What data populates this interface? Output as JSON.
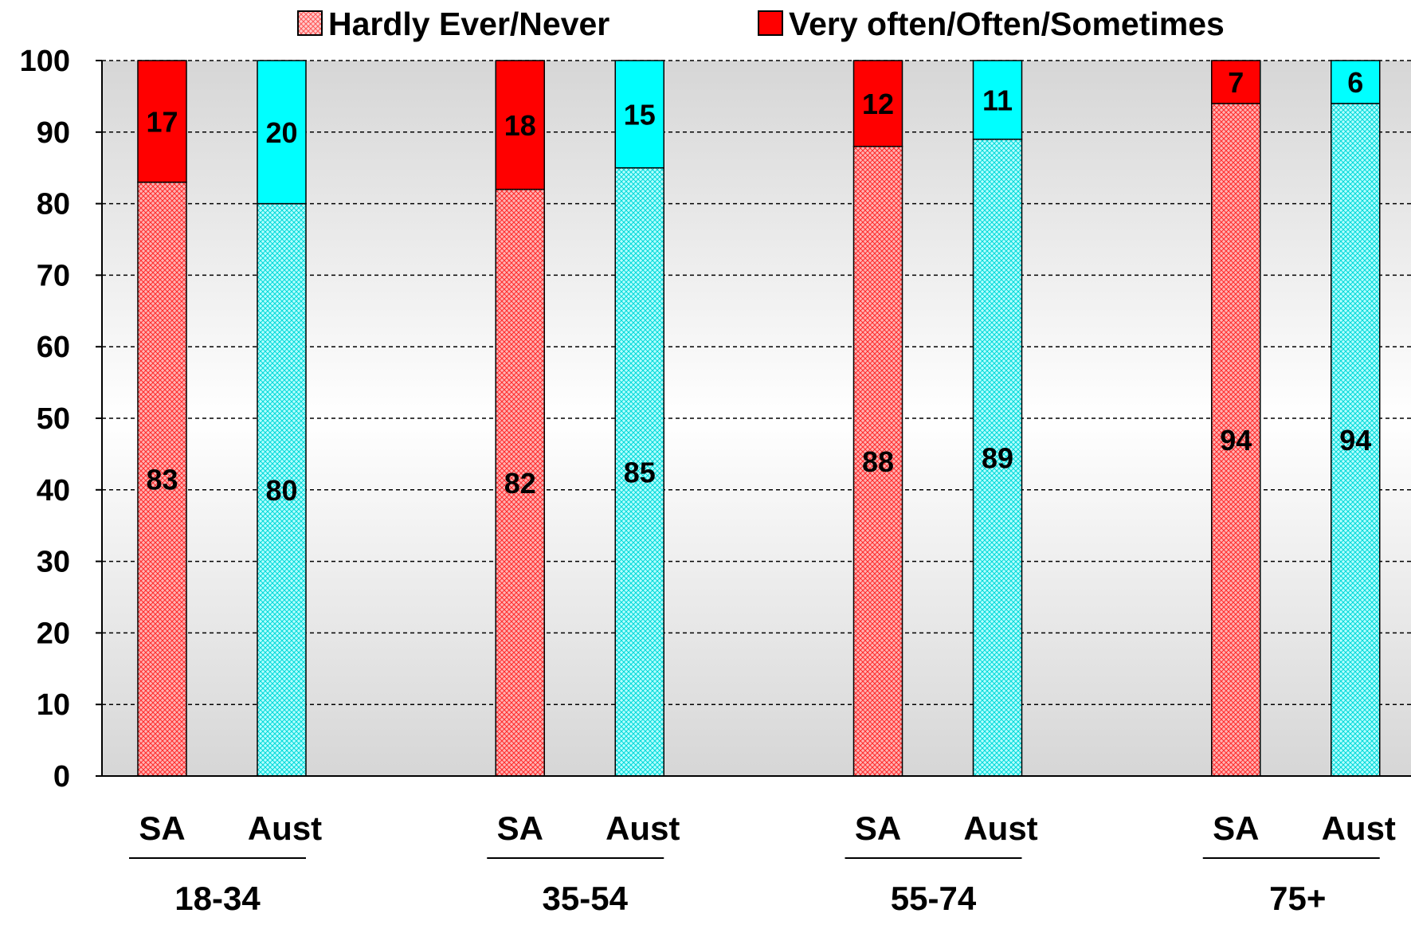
{
  "chart_data": {
    "type": "bar",
    "stacked": true,
    "title": "",
    "xlabel": "",
    "ylabel": "",
    "ylim": [
      0,
      100
    ],
    "yticks": [
      0,
      10,
      20,
      30,
      40,
      50,
      60,
      70,
      80,
      90,
      100
    ],
    "grid": true,
    "legend_position": "top",
    "groups": [
      "18-34",
      "35-54",
      "55-74",
      "75+"
    ],
    "bars": [
      "SA",
      "Aust"
    ],
    "series": [
      {
        "name": "Hardly Ever/Never",
        "pattern": "crosshatch",
        "values": {
          "SA": [
            83,
            82,
            88,
            94
          ],
          "Aust": [
            80,
            85,
            89,
            94
          ]
        }
      },
      {
        "name": "Very often/Often/Sometimes",
        "pattern": "solid",
        "values": {
          "SA": [
            17,
            18,
            12,
            7
          ],
          "Aust": [
            20,
            15,
            11,
            6
          ]
        }
      }
    ],
    "colors": {
      "SA": "#ff0000",
      "Aust": "#00ffff",
      "SA_hatch_bg": "#ffb3b3",
      "Aust_hatch_bg": "#b3ffff",
      "legend_hatch": "#ff9999",
      "plot_bg_edge": "#d6d6d6",
      "plot_bg_mid": "#ffffff"
    }
  }
}
